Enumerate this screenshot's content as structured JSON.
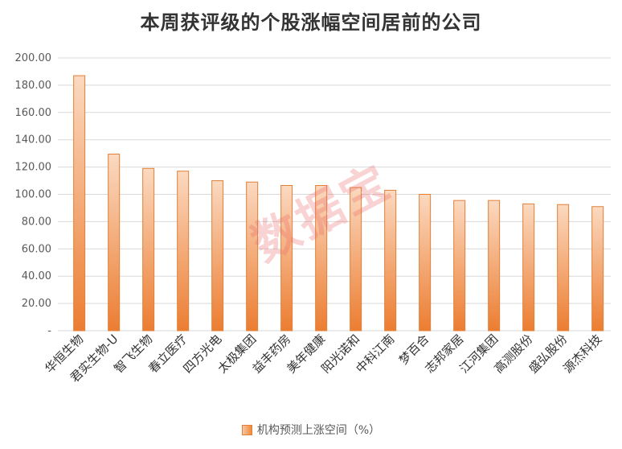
{
  "watermark": "数据宝",
  "chart_data": {
    "type": "bar",
    "title": "本周获评级的个股涨幅空间居前的公司",
    "series": [
      {
        "name": "机构预测上涨空间（%）",
        "values": [
          187.0,
          129.5,
          119.0,
          117.0,
          110.0,
          109.0,
          106.5,
          106.5,
          105.0,
          103.0,
          100.0,
          95.5,
          95.5,
          93.0,
          92.5,
          91.0
        ]
      }
    ],
    "categories": [
      "华恒生物",
      "君实生物-U",
      "智飞生物",
      "春立医疗",
      "四方光电",
      "太极集团",
      "益丰药房",
      "美年健康",
      "阳光诺和",
      "中科江南",
      "梦百合",
      "志邦家居",
      "江河集团",
      "高测股份",
      "盛弘股份",
      "源杰科技"
    ],
    "yticks": [
      "-",
      "20.00",
      "40.00",
      "60.00",
      "80.00",
      "100.00",
      "120.00",
      "140.00",
      "160.00",
      "180.00",
      "200.00"
    ],
    "ylim": [
      0,
      200
    ],
    "grid": true,
    "legend_position": "bottom",
    "colors": {
      "bar_light": "#fbd9c0",
      "bar_dark": "#ec7d31",
      "bar_border": "#e0803a",
      "grid": "#d9d9d9"
    }
  }
}
